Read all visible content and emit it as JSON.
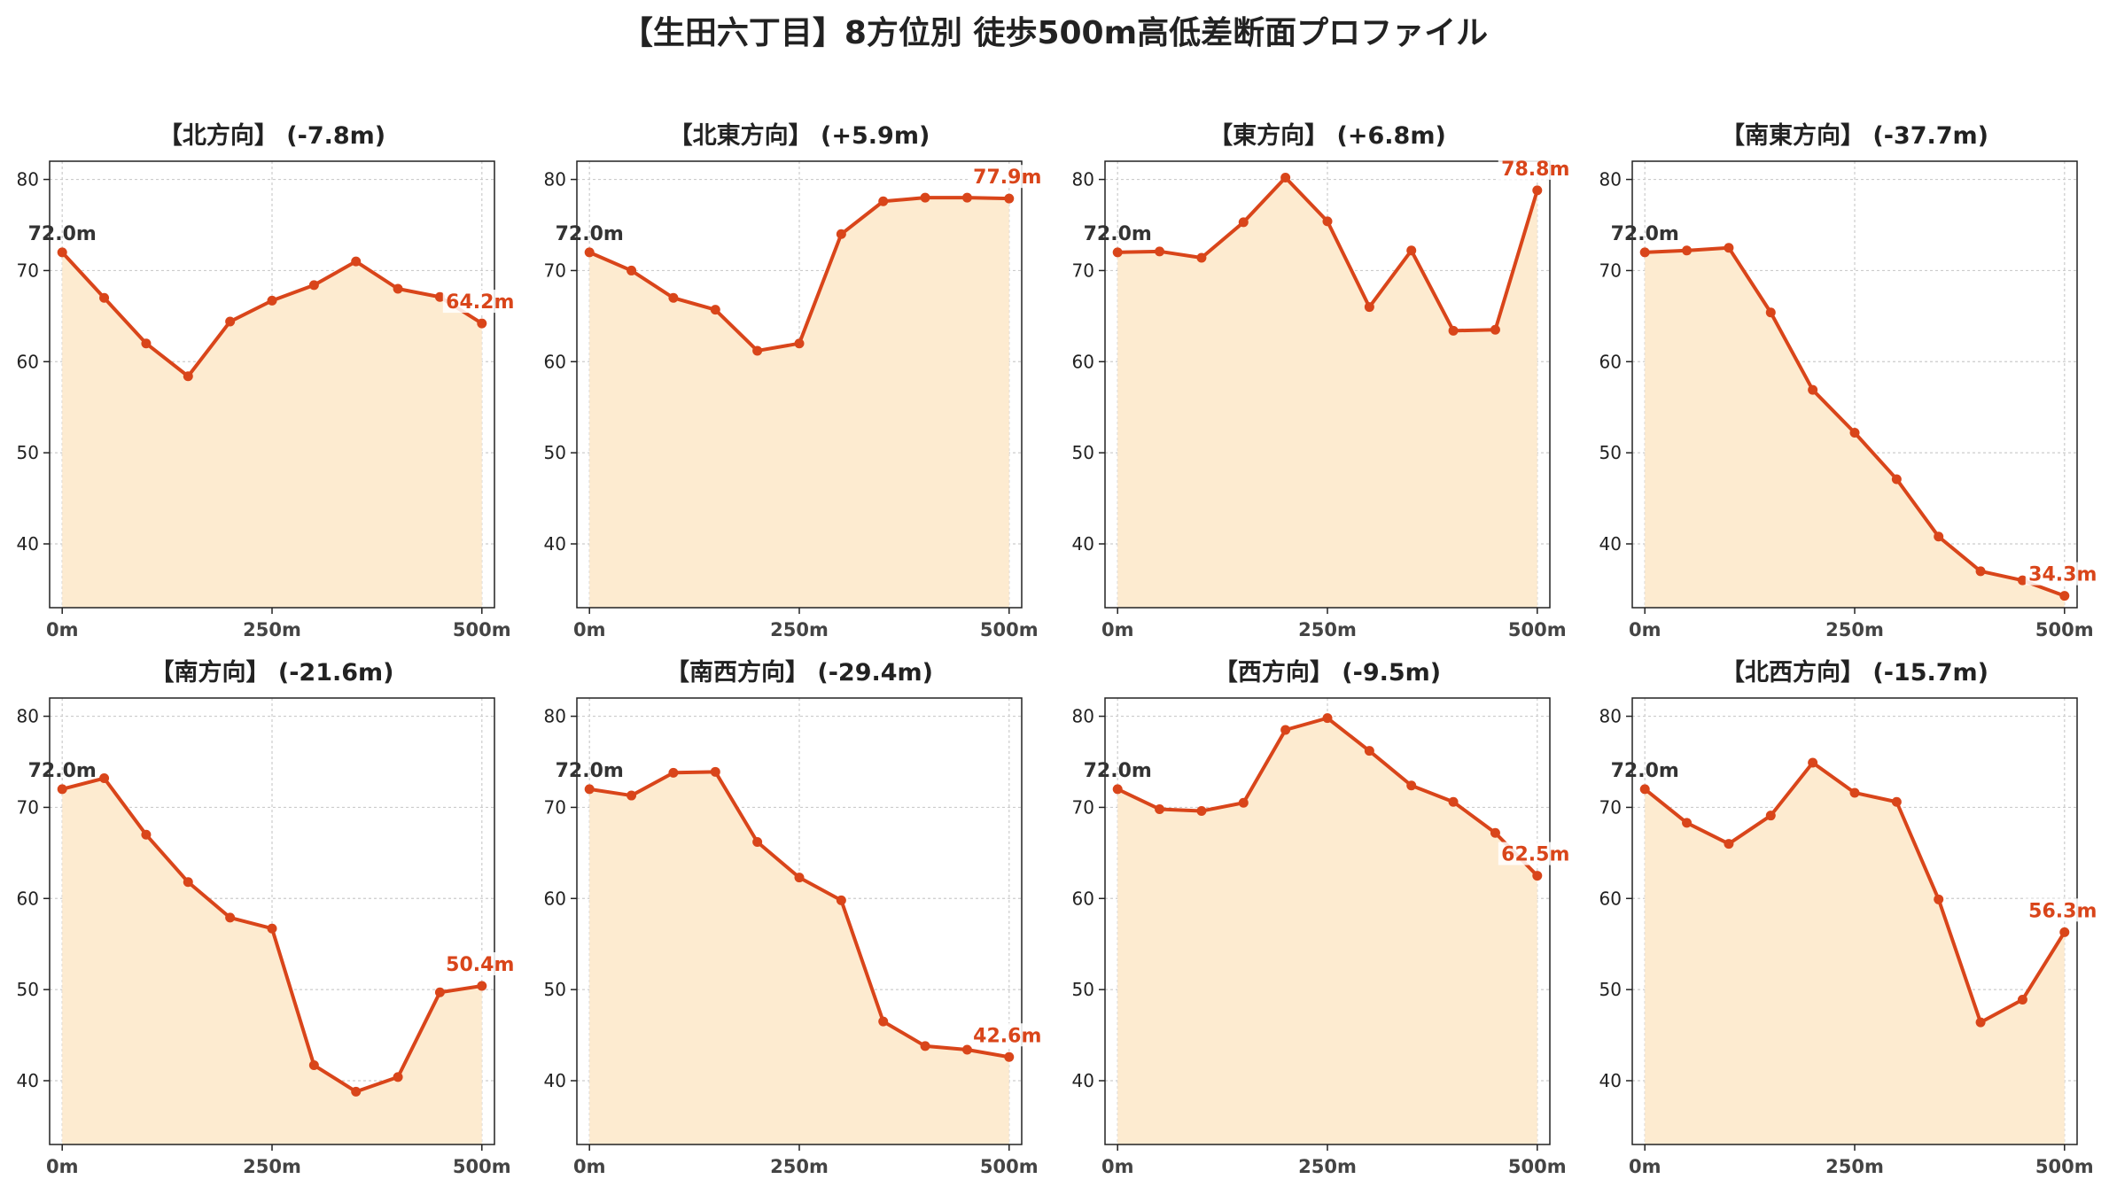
{
  "figure": {
    "title": "【生田六丁目】8方位別 徒歩500m高低差断面プロファイル"
  },
  "colors": {
    "line": "#d9451a",
    "fill": "#fdebd0",
    "start_label": "#333333",
    "end_label": "#d9451a",
    "grid": "#cccccc",
    "axis": "#222222"
  },
  "chart_data": [
    {
      "type": "area",
      "title": "【北方向】 (-7.8m)",
      "x": [
        0,
        50,
        100,
        150,
        200,
        250,
        300,
        350,
        400,
        450,
        500
      ],
      "values": [
        72.0,
        67.0,
        62.0,
        58.4,
        64.4,
        66.7,
        68.4,
        71.0,
        68.0,
        67.1,
        64.2
      ],
      "start_label": "72.0m",
      "end_label": "64.2m",
      "xticks": [
        "0m",
        "250m",
        "500m"
      ],
      "yticks": [
        40,
        50,
        60,
        70,
        80
      ],
      "ylim": [
        33,
        82
      ],
      "xlim": [
        -15,
        515
      ],
      "grid": true
    },
    {
      "type": "area",
      "title": "【北東方向】 (+5.9m)",
      "x": [
        0,
        50,
        100,
        150,
        200,
        250,
        300,
        350,
        400,
        450,
        500
      ],
      "values": [
        72.0,
        70.0,
        67.0,
        65.7,
        61.2,
        62.0,
        74.0,
        77.6,
        78.0,
        78.0,
        77.9
      ],
      "start_label": "72.0m",
      "end_label": "77.9m",
      "xticks": [
        "0m",
        "250m",
        "500m"
      ],
      "yticks": [
        40,
        50,
        60,
        70,
        80
      ],
      "ylim": [
        33,
        82
      ],
      "xlim": [
        -15,
        515
      ],
      "grid": true
    },
    {
      "type": "area",
      "title": "【東方向】 (+6.8m)",
      "x": [
        0,
        50,
        100,
        150,
        200,
        250,
        300,
        350,
        400,
        450,
        500
      ],
      "values": [
        72.0,
        72.1,
        71.4,
        75.3,
        80.2,
        75.4,
        66.0,
        72.2,
        63.4,
        63.5,
        78.8
      ],
      "start_label": "72.0m",
      "end_label": "78.8m",
      "xticks": [
        "0m",
        "250m",
        "500m"
      ],
      "yticks": [
        40,
        50,
        60,
        70,
        80
      ],
      "ylim": [
        33,
        82
      ],
      "xlim": [
        -15,
        515
      ],
      "grid": true
    },
    {
      "type": "area",
      "title": "【南東方向】 (-37.7m)",
      "x": [
        0,
        50,
        100,
        150,
        200,
        250,
        300,
        350,
        400,
        450,
        500
      ],
      "values": [
        72.0,
        72.2,
        72.5,
        65.4,
        56.9,
        52.2,
        47.1,
        40.8,
        37.0,
        36.0,
        34.3
      ],
      "start_label": "72.0m",
      "end_label": "34.3m",
      "xticks": [
        "0m",
        "250m",
        "500m"
      ],
      "yticks": [
        40,
        50,
        60,
        70,
        80
      ],
      "ylim": [
        33,
        82
      ],
      "xlim": [
        -15,
        515
      ],
      "grid": true
    },
    {
      "type": "area",
      "title": "【南方向】 (-21.6m)",
      "x": [
        0,
        50,
        100,
        150,
        200,
        250,
        300,
        350,
        400,
        450,
        500
      ],
      "values": [
        72.0,
        73.2,
        67.0,
        61.8,
        57.9,
        56.7,
        41.7,
        38.8,
        40.4,
        49.7,
        50.4
      ],
      "start_label": "72.0m",
      "end_label": "50.4m",
      "xticks": [
        "0m",
        "250m",
        "500m"
      ],
      "yticks": [
        40,
        50,
        60,
        70,
        80
      ],
      "ylim": [
        33,
        82
      ],
      "xlim": [
        -15,
        515
      ],
      "grid": true
    },
    {
      "type": "area",
      "title": "【南西方向】 (-29.4m)",
      "x": [
        0,
        50,
        100,
        150,
        200,
        250,
        300,
        350,
        400,
        450,
        500
      ],
      "values": [
        72.0,
        71.3,
        73.8,
        73.9,
        66.2,
        62.3,
        59.8,
        46.5,
        43.8,
        43.4,
        42.6
      ],
      "start_label": "72.0m",
      "end_label": "42.6m",
      "xticks": [
        "0m",
        "250m",
        "500m"
      ],
      "yticks": [
        40,
        50,
        60,
        70,
        80
      ],
      "ylim": [
        33,
        82
      ],
      "xlim": [
        -15,
        515
      ],
      "grid": true
    },
    {
      "type": "area",
      "title": "【西方向】 (-9.5m)",
      "x": [
        0,
        50,
        100,
        150,
        200,
        250,
        300,
        350,
        400,
        450,
        500
      ],
      "values": [
        72.0,
        69.8,
        69.6,
        70.5,
        78.5,
        79.8,
        76.2,
        72.4,
        70.6,
        67.2,
        62.5
      ],
      "start_label": "72.0m",
      "end_label": "62.5m",
      "xticks": [
        "0m",
        "250m",
        "500m"
      ],
      "yticks": [
        40,
        50,
        60,
        70,
        80
      ],
      "ylim": [
        33,
        82
      ],
      "xlim": [
        -15,
        515
      ],
      "grid": true
    },
    {
      "type": "area",
      "title": "【北西方向】 (-15.7m)",
      "x": [
        0,
        50,
        100,
        150,
        200,
        250,
        300,
        350,
        400,
        450,
        500
      ],
      "values": [
        72.0,
        68.3,
        66.0,
        69.1,
        74.9,
        71.6,
        70.6,
        59.9,
        46.4,
        48.9,
        56.3
      ],
      "start_label": "72.0m",
      "end_label": "56.3m",
      "xticks": [
        "0m",
        "250m",
        "500m"
      ],
      "yticks": [
        40,
        50,
        60,
        70,
        80
      ],
      "ylim": [
        33,
        82
      ],
      "xlim": [
        -15,
        515
      ],
      "grid": true
    }
  ]
}
